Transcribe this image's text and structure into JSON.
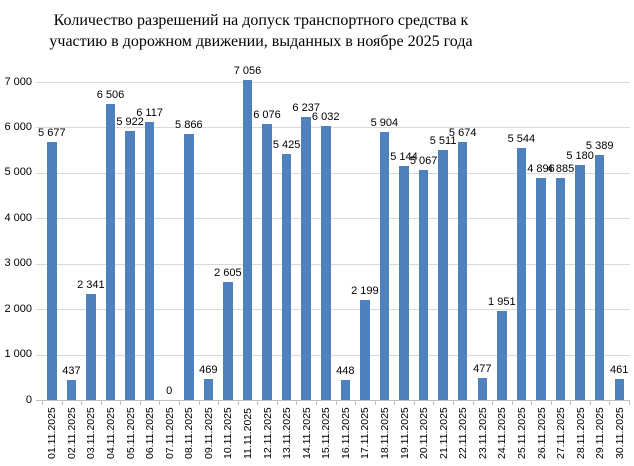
{
  "chart_title": {
    "line1": "Количество разрешений на допуск транспортного средства к",
    "line2": "участию в дорожном движении, выданных в ноябре 2025 года"
  },
  "chart_data": {
    "type": "bar",
    "title": "Количество разрешений на допуск транспортного средства к участию в дорожном движении, выданных в ноябре 2025 года",
    "categories": [
      "01.11.2025",
      "02.11.2025",
      "03.11.2025",
      "04.11.2025",
      "05.11.2025",
      "06.11.2025",
      "07.11.2025",
      "08.11.2025",
      "09.11.2025",
      "10.11.2025",
      "11.11.2025",
      "12.11.2025",
      "13.11.2025",
      "14.11.2025",
      "15.11.2025",
      "16.11.2025",
      "17.11.2025",
      "18.11.2025",
      "19.11.2025",
      "20.11.2025",
      "21.11.2025",
      "22.11.2025",
      "23.11.2025",
      "24.11.2025",
      "25.11.2025",
      "26.11.2025",
      "27.11.2025",
      "28.11.2025",
      "29.11.2025",
      "30.11.2025"
    ],
    "values": [
      5677,
      437,
      2341,
      6506,
      5922,
      6117,
      0,
      5866,
      469,
      2605,
      7056,
      6076,
      5425,
      6237,
      6032,
      448,
      2199,
      5904,
      5144,
      5067,
      5511,
      5674,
      477,
      1951,
      5544,
      4896,
      4885,
      5180,
      5389,
      461
    ],
    "data_labels": [
      "5 677",
      "437",
      "2 341",
      "6 506",
      "5 922",
      "6 117",
      "0",
      "5 866",
      "469",
      "2 605",
      "7 056",
      "6 076",
      "5 425",
      "6 237",
      "6 032",
      "448",
      "2 199",
      "5 904",
      "5 144",
      "5 067",
      "5 511",
      "5 674",
      "477",
      "1 951",
      "5 544",
      "4 896",
      "4 885",
      "5 180",
      "5 389",
      "461"
    ],
    "ytick_labels": [
      "0",
      "1 000",
      "2 000",
      "3 000",
      "4 000",
      "5 000",
      "6 000",
      "7 000"
    ],
    "ylim": [
      0,
      7000
    ],
    "ytick_step": 1000,
    "grid": true,
    "legend": "none",
    "xlabel": "",
    "ylabel": "",
    "bar_color": "#4E81BD",
    "gridline_color": "#D9D9D9",
    "axis_color": "#BFBFBF",
    "text_color": "#000000",
    "background_color": "#FFFFFF"
  }
}
